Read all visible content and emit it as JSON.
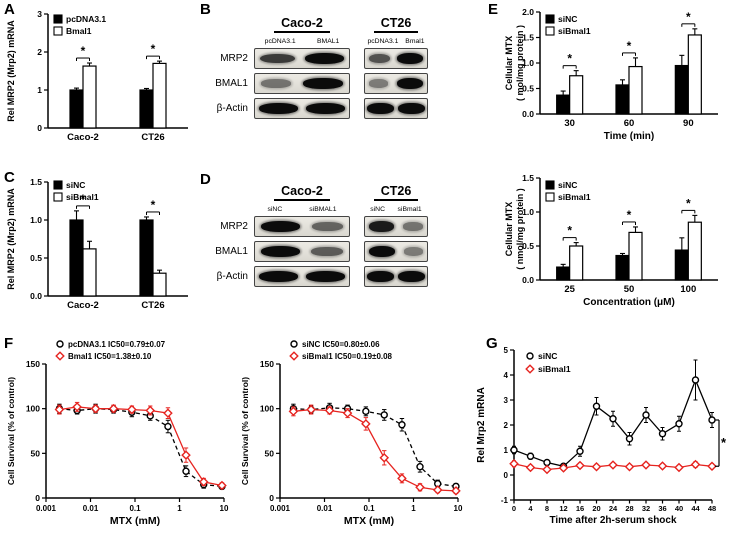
{
  "figure": {
    "background": "#ffffff",
    "accent_red": "#e62420",
    "black": "#000000"
  },
  "panels": {
    "A": {
      "label": "A"
    },
    "B": {
      "label": "B",
      "groups": [
        {
          "title": "Caco-2",
          "lanes": [
            "pcDNA3.1",
            "BMAL1"
          ]
        },
        {
          "title": "CT26",
          "lanes": [
            "pcDNA3.1",
            "Bmal1"
          ]
        }
      ],
      "rows": [
        {
          "label": "MRP2",
          "bands": [
            [
              0.7,
              1.0
            ],
            [
              0.55,
              1.0
            ]
          ]
        },
        {
          "label": "BMAL1",
          "bands": [
            [
              0.35,
              1.0
            ],
            [
              0.3,
              1.0
            ]
          ]
        },
        {
          "label": "β-Actin",
          "bands": [
            [
              1.0,
              1.0
            ],
            [
              1.0,
              1.0
            ]
          ]
        }
      ]
    },
    "C": {
      "label": "C"
    },
    "D": {
      "label": "D",
      "groups": [
        {
          "title": "Caco-2",
          "lanes": [
            "siNC",
            "siBMAL1"
          ]
        },
        {
          "title": "CT26",
          "lanes": [
            "siNC",
            "siBmal1"
          ]
        }
      ],
      "rows": [
        {
          "label": "MRP2",
          "bands": [
            [
              1.0,
              0.45
            ],
            [
              0.9,
              0.35
            ]
          ]
        },
        {
          "label": "BMAL1",
          "bands": [
            [
              1.0,
              0.5
            ],
            [
              1.0,
              0.3
            ]
          ]
        },
        {
          "label": "β-Actin",
          "bands": [
            [
              1.0,
              1.0
            ],
            [
              1.0,
              1.0
            ]
          ]
        }
      ]
    },
    "E": {
      "label": "E"
    },
    "F": {
      "label": "F"
    },
    "G": {
      "label": "G"
    }
  },
  "chart_data": [
    {
      "id": "A",
      "type": "bar",
      "ylabel": "Rel MRP2 (Mrp2) mRNA",
      "ylim": [
        0,
        3
      ],
      "yticks": [
        0,
        1,
        2,
        3
      ],
      "ydecimals": 0,
      "categories": [
        "Caco-2",
        "CT26"
      ],
      "series": [
        {
          "name": "pcDNA3.1",
          "fill": "#000000",
          "values": [
            1.0,
            1.0
          ],
          "errors": [
            0.05,
            0.04
          ]
        },
        {
          "name": "Bmal1",
          "fill": "#ffffff",
          "values": [
            1.63,
            1.7
          ],
          "errors": [
            0.08,
            0.06
          ]
        }
      ],
      "sig": [
        "*",
        "*"
      ]
    },
    {
      "id": "C",
      "type": "bar",
      "ylabel": "Rel MRP2 (Mrp2) mRNA",
      "ylim": [
        0,
        1.5
      ],
      "yticks": [
        0,
        0.5,
        1.0,
        1.5
      ],
      "ydecimals": 1,
      "categories": [
        "Caco-2",
        "CT26"
      ],
      "series": [
        {
          "name": "siNC",
          "fill": "#000000",
          "values": [
            1.0,
            1.0
          ],
          "errors": [
            0.12,
            0.04
          ]
        },
        {
          "name": "siBmal1",
          "fill": "#ffffff",
          "values": [
            0.62,
            0.3
          ],
          "errors": [
            0.1,
            0.04
          ]
        }
      ],
      "sig": [
        "*",
        "*"
      ]
    },
    {
      "id": "E1",
      "type": "bar",
      "ylabel_lines": [
        "Cellular MTX",
        "( mol/mg protein )"
      ],
      "xlabel": "Time (min)",
      "ylim": [
        0,
        2.0
      ],
      "yticks": [
        0,
        0.5,
        1.0,
        1.5,
        2.0
      ],
      "ydecimals": 1,
      "categories": [
        "30",
        "60",
        "90"
      ],
      "series": [
        {
          "name": "siNC",
          "fill": "#000000",
          "values": [
            0.37,
            0.57,
            0.95
          ],
          "errors": [
            0.08,
            0.1,
            0.2
          ]
        },
        {
          "name": "siBmal1",
          "fill": "#ffffff",
          "values": [
            0.75,
            0.93,
            1.55
          ],
          "errors": [
            0.1,
            0.17,
            0.12
          ]
        }
      ],
      "sig": [
        "*",
        "*",
        "*"
      ]
    },
    {
      "id": "E2",
      "type": "bar",
      "ylabel_lines": [
        "Cellular MTX",
        "( nmol/mg protein )"
      ],
      "xlabel": "Concentration (μM)",
      "ylim": [
        0,
        1.5
      ],
      "yticks": [
        0,
        0.5,
        1.0,
        1.5
      ],
      "ydecimals": 1,
      "categories": [
        "25",
        "50",
        "100"
      ],
      "series": [
        {
          "name": "siNC",
          "fill": "#000000",
          "values": [
            0.19,
            0.36,
            0.44
          ],
          "errors": [
            0.04,
            0.03,
            0.18
          ]
        },
        {
          "name": "siBmal1",
          "fill": "#ffffff",
          "values": [
            0.5,
            0.7,
            0.85
          ],
          "errors": [
            0.05,
            0.08,
            0.1
          ]
        }
      ],
      "sig": [
        "*",
        "*",
        "*"
      ]
    },
    {
      "id": "F1",
      "type": "line-log",
      "ylabel": "Cell Survival (% of control)",
      "xlabel": "MTX (mM)",
      "ylim": [
        0,
        150
      ],
      "yticks": [
        0,
        50,
        100,
        150
      ],
      "xticks": [
        0.001,
        0.01,
        0.1,
        1,
        10
      ],
      "xtick_labels": [
        "0.001",
        "0.01",
        "0.1",
        "1",
        "10"
      ],
      "series": [
        {
          "name": "pcDNA3.1 IC50=0.79±0.07",
          "color": "#000000",
          "marker": "circle",
          "dash": true,
          "x": [
            0.002,
            0.005,
            0.013,
            0.033,
            0.085,
            0.22,
            0.55,
            1.4,
            3.5,
            9
          ],
          "y": [
            100,
            98,
            100,
            99,
            96,
            92,
            80,
            30,
            15,
            13
          ],
          "err": [
            5,
            4,
            5,
            4,
            5,
            5,
            7,
            6,
            4,
            3
          ]
        },
        {
          "name": "Bmal1 IC50=1.38±0.10",
          "color": "#e62420",
          "marker": "diamond",
          "dash": false,
          "x": [
            0.002,
            0.005,
            0.013,
            0.033,
            0.085,
            0.22,
            0.55,
            1.4,
            3.5,
            9
          ],
          "y": [
            99,
            102,
            100,
            100,
            99,
            98,
            95,
            48,
            18,
            14
          ],
          "err": [
            5,
            5,
            4,
            4,
            4,
            5,
            6,
            8,
            4,
            3
          ]
        }
      ]
    },
    {
      "id": "F2",
      "type": "line-log",
      "ylabel": "Cell Survival (% of control)",
      "xlabel": "MTX (mM)",
      "ylim": [
        0,
        150
      ],
      "yticks": [
        0,
        50,
        100,
        150
      ],
      "xticks": [
        0.001,
        0.01,
        0.1,
        1,
        10
      ],
      "xtick_labels": [
        "0.001",
        "0.01",
        "0.1",
        "1",
        "10"
      ],
      "series": [
        {
          "name": "siNC IC50=0.80±0.06",
          "color": "#000000",
          "marker": "circle",
          "dash": true,
          "x": [
            0.002,
            0.005,
            0.013,
            0.033,
            0.085,
            0.22,
            0.55,
            1.4,
            3.5,
            9
          ],
          "y": [
            100,
            99,
            101,
            100,
            97,
            93,
            82,
            35,
            16,
            13
          ],
          "err": [
            5,
            4,
            5,
            4,
            5,
            6,
            7,
            6,
            4,
            3
          ]
        },
        {
          "name": "siBmal1 IC50=0.19±0.08",
          "color": "#e62420",
          "marker": "diamond",
          "dash": false,
          "x": [
            0.002,
            0.005,
            0.013,
            0.033,
            0.085,
            0.22,
            0.55,
            1.4,
            3.5,
            9
          ],
          "y": [
            97,
            99,
            98,
            95,
            83,
            45,
            22,
            12,
            9,
            8
          ],
          "err": [
            5,
            5,
            4,
            5,
            7,
            8,
            5,
            4,
            3,
            3
          ]
        }
      ]
    },
    {
      "id": "G",
      "type": "line",
      "ylabel": "Rel Mrp2 mRNA",
      "xlabel": "Time after 2h-serum shock",
      "ylim": [
        -1,
        5
      ],
      "yticks": [
        -1,
        0,
        1,
        2,
        3,
        4,
        5
      ],
      "xlim": [
        0,
        48
      ],
      "xticks": [
        0,
        4,
        8,
        12,
        16,
        20,
        24,
        28,
        32,
        36,
        40,
        44,
        48
      ],
      "series": [
        {
          "name": "siNC",
          "color": "#000000",
          "marker": "circle",
          "x": [
            0,
            4,
            8,
            12,
            16,
            20,
            24,
            28,
            32,
            36,
            40,
            44,
            48
          ],
          "y": [
            1.0,
            0.75,
            0.5,
            0.35,
            0.95,
            2.75,
            2.25,
            1.45,
            2.4,
            1.65,
            2.05,
            3.8,
            2.2
          ],
          "err": [
            0.15,
            0.12,
            0.1,
            0.1,
            0.2,
            0.35,
            0.3,
            0.25,
            0.3,
            0.25,
            0.3,
            0.8,
            0.3
          ]
        },
        {
          "name": "siBmal1",
          "color": "#e62420",
          "marker": "diamond",
          "x": [
            0,
            4,
            8,
            12,
            16,
            20,
            24,
            28,
            32,
            36,
            40,
            44,
            48
          ],
          "y": [
            0.45,
            0.3,
            0.22,
            0.28,
            0.38,
            0.33,
            0.4,
            0.33,
            0.4,
            0.36,
            0.3,
            0.42,
            0.35
          ],
          "err": [
            0.12,
            0.1,
            0.08,
            0.1,
            0.1,
            0.1,
            0.1,
            0.08,
            0.1,
            0.1,
            0.08,
            0.12,
            0.1
          ]
        }
      ],
      "sig_right": "*"
    }
  ]
}
